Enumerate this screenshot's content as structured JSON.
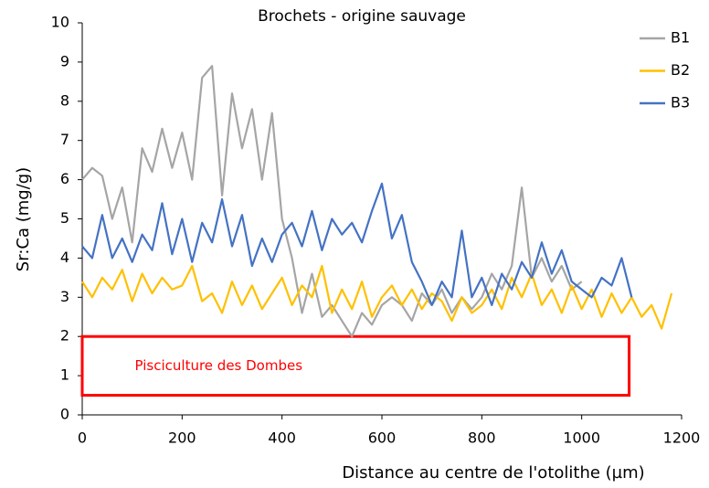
{
  "chart_data": {
    "type": "line",
    "title": "Brochets - origine sauvage",
    "xlabel": "Distance au centre de l'otolithe (µm)",
    "ylabel": "Sr:Ca (mg/g)",
    "x": [
      0,
      20,
      40,
      60,
      80,
      100,
      120,
      140,
      160,
      180,
      200,
      220,
      240,
      260,
      280,
      300,
      320,
      340,
      360,
      380,
      400,
      420,
      440,
      460,
      480,
      500,
      520,
      540,
      560,
      580,
      600,
      620,
      640,
      660,
      680,
      700,
      720,
      740,
      760,
      780,
      800,
      820,
      840,
      860,
      880,
      900,
      920,
      940,
      960,
      980,
      1000,
      1020,
      1040,
      1060,
      1080,
      1100,
      1120,
      1140,
      1160,
      1180
    ],
    "series": [
      {
        "name": "B1",
        "color": "#a5a5a5",
        "values": [
          6.0,
          6.3,
          6.1,
          5.0,
          5.8,
          4.4,
          6.8,
          6.2,
          7.3,
          6.3,
          7.2,
          6.0,
          8.6,
          8.9,
          5.6,
          8.2,
          6.8,
          7.8,
          6.0,
          7.7,
          5.0,
          4.0,
          2.6,
          3.6,
          2.5,
          2.8,
          2.4,
          2.0,
          2.6,
          2.3,
          2.8,
          3.0,
          2.8,
          2.4,
          3.1,
          2.8,
          3.2,
          2.6,
          3.0,
          2.7,
          3.0,
          3.6,
          3.2,
          3.8,
          5.8,
          3.5,
          4.0,
          3.4,
          3.8,
          3.2,
          3.4,
          null,
          null,
          null,
          null,
          null,
          null,
          null,
          null,
          null
        ]
      },
      {
        "name": "B2",
        "color": "#ffc000",
        "values": [
          3.4,
          3.0,
          3.5,
          3.2,
          3.7,
          2.9,
          3.6,
          3.1,
          3.5,
          3.2,
          3.3,
          3.8,
          2.9,
          3.1,
          2.6,
          3.4,
          2.8,
          3.3,
          2.7,
          3.1,
          3.5,
          2.8,
          3.3,
          3.0,
          3.8,
          2.6,
          3.2,
          2.7,
          3.4,
          2.5,
          3.0,
          3.3,
          2.8,
          3.2,
          2.7,
          3.1,
          2.9,
          2.4,
          3.0,
          2.6,
          2.8,
          3.2,
          2.7,
          3.5,
          3.0,
          3.6,
          2.8,
          3.2,
          2.6,
          3.3,
          2.7,
          3.2,
          2.5,
          3.1,
          2.6,
          3.0,
          2.5,
          2.8,
          2.2,
          3.1
        ]
      },
      {
        "name": "B3",
        "color": "#4472c4",
        "values": [
          4.3,
          4.0,
          5.1,
          4.0,
          4.5,
          3.9,
          4.6,
          4.2,
          5.4,
          4.1,
          5.0,
          3.9,
          4.9,
          4.4,
          5.5,
          4.3,
          5.1,
          3.8,
          4.5,
          3.9,
          4.6,
          4.9,
          4.3,
          5.2,
          4.2,
          5.0,
          4.6,
          4.9,
          4.4,
          5.2,
          5.9,
          4.5,
          5.1,
          3.9,
          3.4,
          2.8,
          3.4,
          3.0,
          4.7,
          3.0,
          3.5,
          2.8,
          3.6,
          3.2,
          3.9,
          3.5,
          4.4,
          3.6,
          4.2,
          3.4,
          3.2,
          3.0,
          3.5,
          3.3,
          4.0,
          3.0,
          null,
          null,
          null,
          null
        ]
      }
    ],
    "xlim": [
      0,
      1200
    ],
    "xticks": [
      0,
      200,
      400,
      600,
      800,
      1000,
      1200
    ],
    "ylim": [
      0,
      10
    ],
    "yticks": [
      0,
      1,
      2,
      3,
      4,
      5,
      6,
      7,
      8,
      9,
      10
    ],
    "annotations": [
      {
        "text": "Pisciculture des Dombes",
        "color": "#ff0000",
        "x": [
          0,
          1095
        ],
        "y": [
          0.5,
          2
        ]
      }
    ]
  }
}
